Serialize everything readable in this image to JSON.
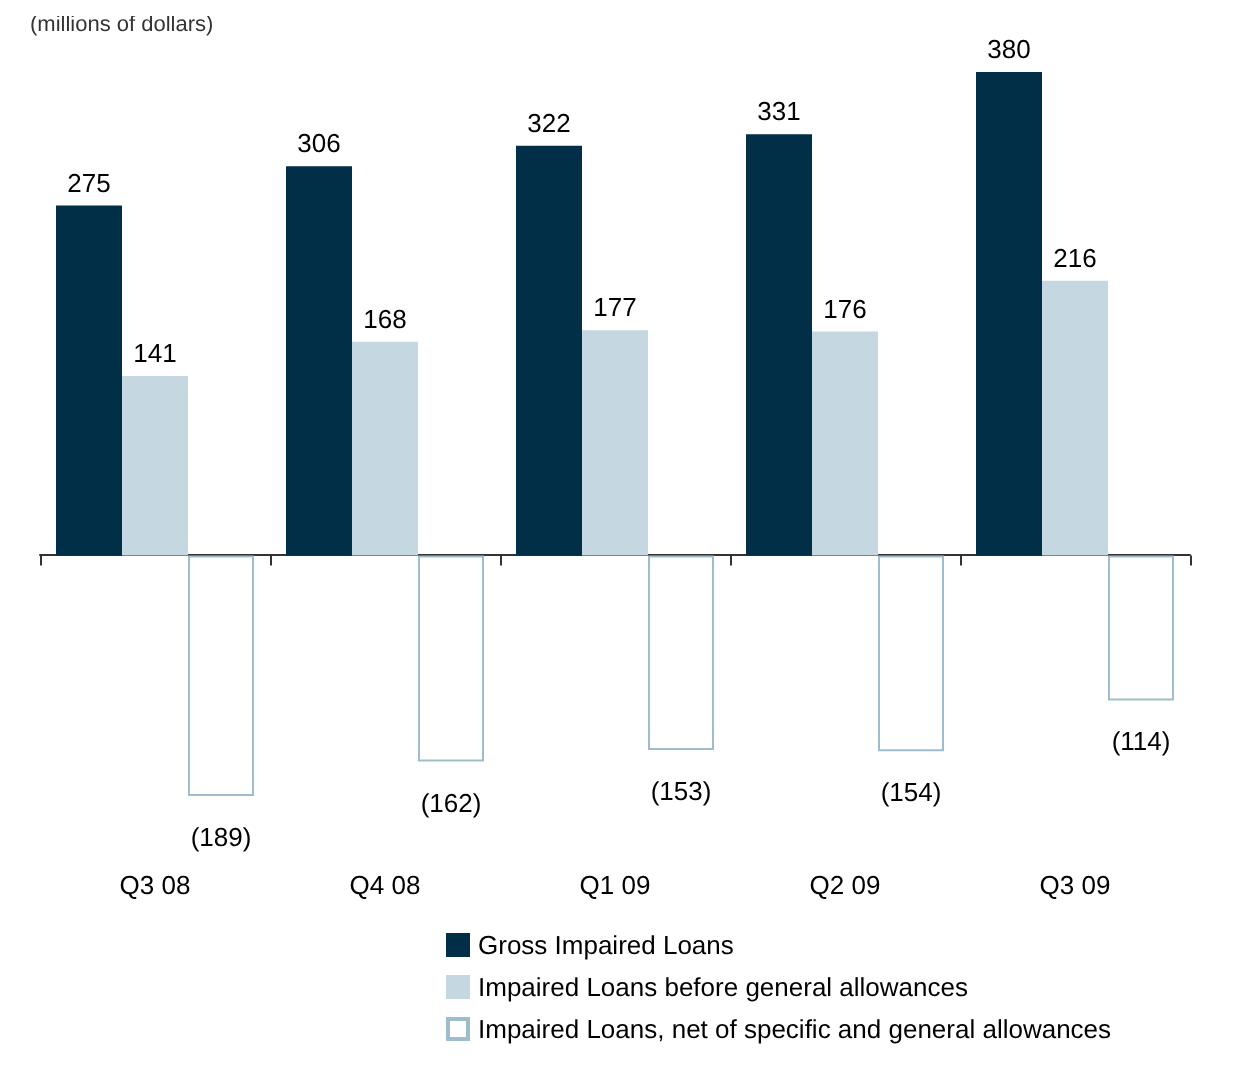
{
  "chart_data": {
    "type": "bar",
    "title": "(millions of dollars)",
    "categories": [
      "Q3 08",
      "Q4 08",
      "Q1 09",
      "Q2 09",
      "Q3 09"
    ],
    "series": [
      {
        "name": "Gross Impaired Loans",
        "color": "#002f47",
        "values": [
          275,
          306,
          322,
          331,
          380
        ],
        "value_labels": [
          "275",
          "306",
          "322",
          "331",
          "380"
        ]
      },
      {
        "name": "Impaired Loans before general allowances",
        "color": "#c5d8e1",
        "values": [
          141,
          168,
          177,
          176,
          216
        ],
        "value_labels": [
          "141",
          "168",
          "177",
          "176",
          "216"
        ]
      },
      {
        "name": "Impaired Loans, net of specific and general allowances",
        "color": "#ffffff",
        "values": [
          -189,
          -162,
          -153,
          -154,
          -114
        ],
        "value_labels": [
          "(189)",
          "(162)",
          "(153)",
          "(154)",
          "(114)"
        ]
      }
    ],
    "legend": "bottom",
    "tick_labels": "x",
    "grid": false
  }
}
